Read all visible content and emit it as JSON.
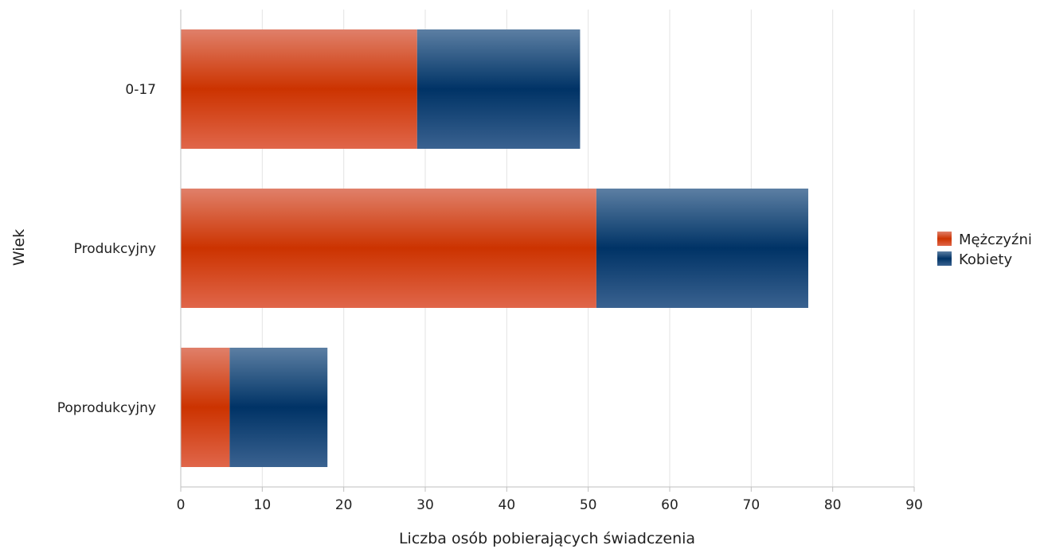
{
  "chart_data": {
    "type": "bar",
    "orientation": "horizontal",
    "stacked": true,
    "title": "",
    "xlabel": "Liczba osób pobierających świadczenia",
    "ylabel": "Wiek",
    "categories": [
      "0-17",
      "Produkcyjny",
      "Poprodukcyjny"
    ],
    "series": [
      {
        "name": "Mężczyźni",
        "values": [
          29,
          51,
          6
        ],
        "color": "#cc3300"
      },
      {
        "name": "Kobiety",
        "values": [
          20,
          26,
          12
        ],
        "color": "#003366"
      }
    ],
    "xlim": [
      0,
      90
    ],
    "xticks": [
      "0",
      "10",
      "20",
      "30",
      "40",
      "50",
      "60",
      "70",
      "80",
      "90"
    ],
    "grid": true,
    "legend_position": "right"
  }
}
